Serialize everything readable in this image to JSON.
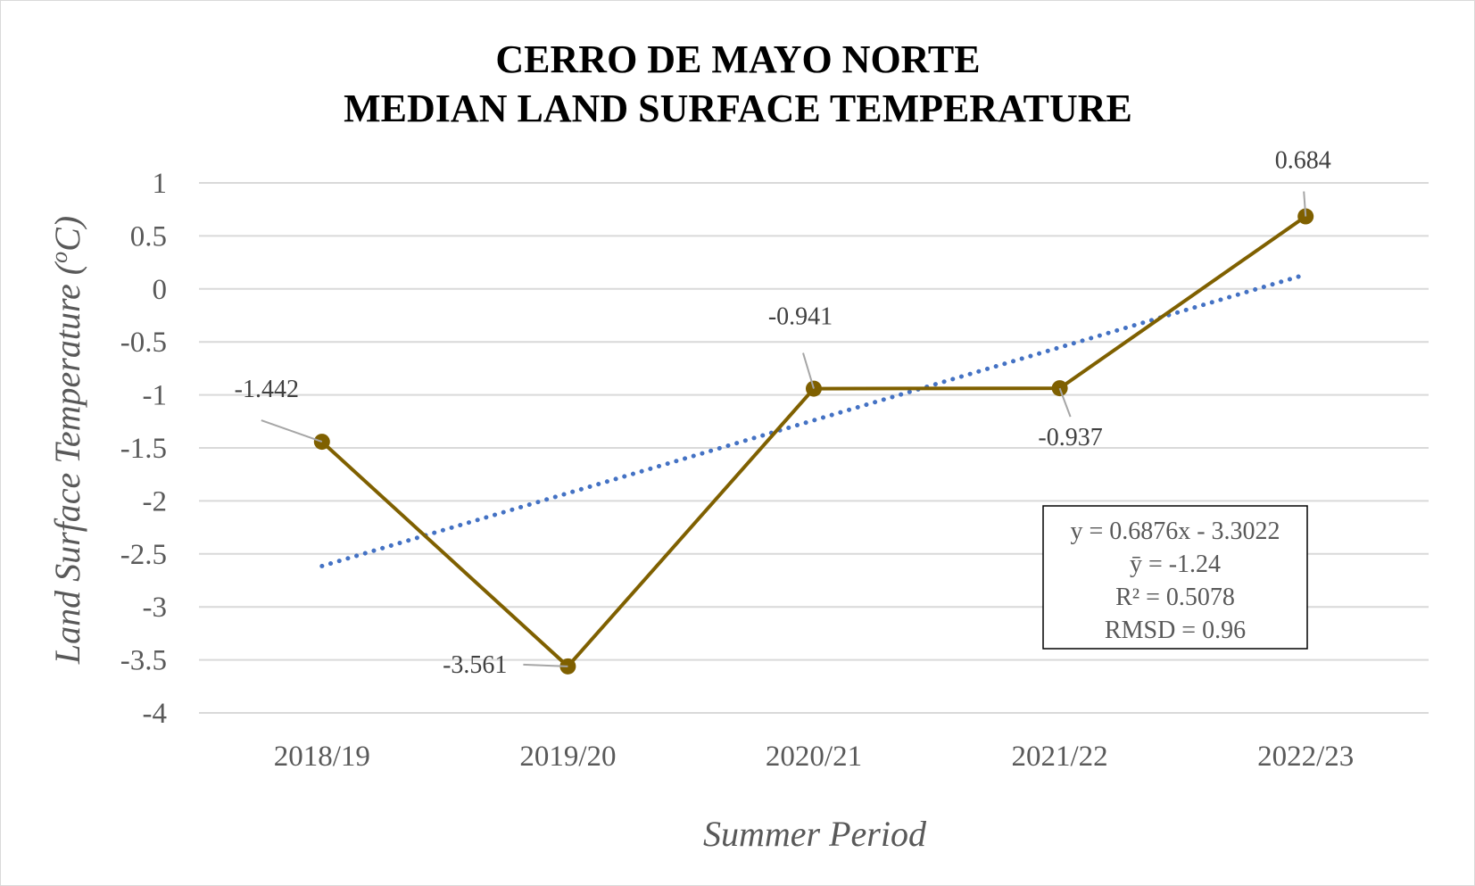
{
  "chart_data": {
    "type": "line",
    "title": [
      "CERRO DE MAYO NORTE",
      "MEDIAN LAND SURFACE TEMPERATURE"
    ],
    "xlabel": "Summer Period",
    "ylabel": "Land Surface Temperature (",
    "ylabel_sup": "o",
    "ylabel_end": "C)",
    "categories": [
      "2018/19",
      "2019/20",
      "2020/21",
      "2021/22",
      "2022/23"
    ],
    "series": [
      {
        "values": [
          -1.442,
          -3.561,
          -0.941,
          -0.937,
          0.684
        ],
        "data_labels": [
          "-1.442",
          "-3.561",
          "-0.941",
          "-0.937",
          "0.684"
        ],
        "color": "#7f6000",
        "marker": "circle"
      }
    ],
    "trendline": {
      "type": "linear",
      "slope": 0.6876,
      "intercept": -3.3022,
      "color": "#4472c4",
      "style": "dotted"
    },
    "stats_box": [
      "y = 0.6876x - 3.3022",
      "ȳ = -1.24",
      "R² = 0.5078",
      "RMSD = 0.96"
    ],
    "ylim": [
      -4,
      1
    ],
    "yticks": [
      1,
      0.5,
      0,
      -0.5,
      -1,
      -1.5,
      -2,
      -2.5,
      -3,
      -3.5,
      -4
    ],
    "ytick_labels": [
      "1",
      "0.5",
      "0",
      "-0.5",
      "-1",
      "-1.5",
      "-2",
      "-2.5",
      "-3",
      "-3.5",
      "-4"
    ],
    "grid": true,
    "legend": "none"
  }
}
